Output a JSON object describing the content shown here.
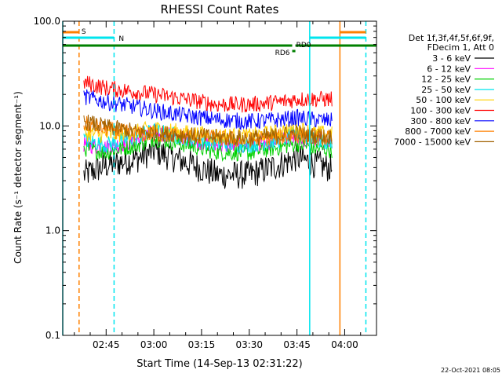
{
  "chart_data": {
    "type": "line",
    "title": "RHESSI Count Rates",
    "xlabel_prefix": "Start Time (",
    "xlabel_date": "14-Sep-13 02:31:22",
    "xlabel_suffix": ")",
    "ylabel": "Count Rate (s⁻¹ detector segment⁻¹)",
    "y_scale": "log",
    "ylim": [
      0.1,
      100.0
    ],
    "y_ticks": [
      {
        "value": 0.1,
        "label": "0.1"
      },
      {
        "value": 1.0,
        "label": "1.0"
      },
      {
        "value": 10.0,
        "label": "10.0"
      },
      {
        "value": 100.0,
        "label": "100.0"
      }
    ],
    "xlim": [
      "02:31:22",
      "04:10:00"
    ],
    "x_ticks": [
      {
        "time": "02:45",
        "label": "02:45"
      },
      {
        "time": "03:00",
        "label": "03:00"
      },
      {
        "time": "03:15",
        "label": "03:15"
      },
      {
        "time": "03:30",
        "label": "03:30"
      },
      {
        "time": "03:45",
        "label": "03:45"
      },
      {
        "time": "04:00",
        "label": "04:00"
      }
    ],
    "legend_header": [
      "Det 1f,3f,4f,5f,6f,9f,",
      "FDecim 1, Att 0"
    ],
    "legend_placement": "right",
    "series": [
      {
        "name": "3 - 6 keV",
        "color": "#000000",
        "x": [
          "02:38",
          "02:45",
          "02:55",
          "03:00",
          "03:10",
          "03:20",
          "03:30",
          "03:40",
          "03:45",
          "03:50",
          "03:56"
        ],
        "values": [
          3.4,
          4.2,
          4.9,
          5.8,
          4.5,
          3.4,
          3.4,
          4.3,
          5.0,
          4.4,
          3.9
        ]
      },
      {
        "name": "6 - 12 keV",
        "color": "#ff00ff",
        "x": [
          "02:38",
          "02:45",
          "02:55",
          "03:00",
          "03:10",
          "03:20",
          "03:30",
          "03:40",
          "03:45",
          "03:50",
          "03:56"
        ],
        "values": [
          6.7,
          6.2,
          7.4,
          8.8,
          7.5,
          6.5,
          6.4,
          7.4,
          7.6,
          7.2,
          6.8
        ]
      },
      {
        "name": "12 - 25 keV",
        "color": "#00d000",
        "x": [
          "02:38",
          "02:45",
          "02:55",
          "03:00",
          "03:10",
          "03:20",
          "03:30",
          "03:40",
          "03:45",
          "03:50",
          "03:56"
        ],
        "values": [
          6.1,
          5.6,
          6.6,
          7.6,
          6.6,
          5.6,
          5.5,
          6.3,
          6.8,
          6.1,
          5.9
        ]
      },
      {
        "name": "25 - 50 keV",
        "color": "#00e5ee",
        "x": [
          "02:38",
          "02:45",
          "02:55",
          "03:00",
          "03:10",
          "03:20",
          "03:30",
          "03:40",
          "03:45",
          "03:50",
          "03:56"
        ],
        "values": [
          7.4,
          6.6,
          7.9,
          9.0,
          7.7,
          6.8,
          6.6,
          7.3,
          8.5,
          7.4,
          6.9
        ]
      },
      {
        "name": "50 - 100 keV",
        "color": "#ffd000",
        "x": [
          "02:38",
          "02:45",
          "02:55",
          "03:00",
          "03:10",
          "03:20",
          "03:30",
          "03:40",
          "03:45",
          "03:50",
          "03:56"
        ],
        "values": [
          8.6,
          8.1,
          8.8,
          9.5,
          8.6,
          8.1,
          8.0,
          8.8,
          9.6,
          8.6,
          8.3
        ]
      },
      {
        "name": "100 - 300 keV",
        "color": "#ff0000",
        "x": [
          "02:38",
          "02:45",
          "02:55",
          "03:00",
          "03:10",
          "03:20",
          "03:30",
          "03:40",
          "03:45",
          "03:50",
          "03:56"
        ],
        "values": [
          26,
          23,
          21,
          20,
          18,
          16,
          16,
          17,
          18,
          18,
          18
        ]
      },
      {
        "name": "300 - 800 keV",
        "color": "#0000ff",
        "x": [
          "02:38",
          "02:45",
          "02:55",
          "03:00",
          "03:10",
          "03:20",
          "03:30",
          "03:40",
          "03:45",
          "03:50",
          "03:56"
        ],
        "values": [
          19,
          17,
          15,
          14,
          12.5,
          11.5,
          11.0,
          11.5,
          12.0,
          11.5,
          11.2
        ]
      },
      {
        "name": "800 - 7000 keV",
        "color": "#ff8000",
        "x": [
          "02:38",
          "02:45",
          "02:55",
          "03:00",
          "03:10",
          "03:20",
          "03:30",
          "03:40",
          "03:45",
          "03:50",
          "03:56"
        ],
        "values": [
          10.5,
          9.3,
          8.3,
          8.4,
          8.0,
          7.6,
          7.3,
          7.8,
          8.2,
          7.8,
          7.5
        ]
      },
      {
        "name": "7000 - 15000 keV",
        "color": "#a06000",
        "x": [
          "02:38",
          "02:45",
          "02:55",
          "03:00",
          "03:10",
          "03:20",
          "03:30",
          "03:40",
          "03:45",
          "03:50",
          "03:56"
        ],
        "values": [
          11.0,
          9.8,
          8.8,
          8.6,
          8.2,
          7.8,
          7.6,
          8.2,
          8.6,
          8.1,
          7.9
        ]
      }
    ],
    "vertical_lines": [
      {
        "time": "02:31:22",
        "color": "#00e5ee",
        "style": "solid"
      },
      {
        "time": "02:36:30",
        "color": "#ff8000",
        "style": "dashed"
      },
      {
        "time": "02:47:30",
        "color": "#00e5ee",
        "style": "dashed"
      },
      {
        "time": "03:49:00",
        "color": "#00e5ee",
        "style": "solid"
      },
      {
        "time": "03:58:30",
        "color": "#ff8000",
        "style": "solid"
      },
      {
        "time": "04:06:40",
        "color": "#00e5ee",
        "style": "dashed"
      }
    ],
    "flag_bars": [
      {
        "label": "S",
        "color": "#ff8000",
        "segments": [
          [
            "02:31:22",
            "02:36:30"
          ],
          [
            "03:58:30",
            "04:06:40"
          ]
        ],
        "level": 1
      },
      {
        "label": "N",
        "color": "#00e5ee",
        "segments": [
          [
            "02:31:22",
            "02:47:30"
          ],
          [
            "03:49:00",
            "04:06:40"
          ]
        ],
        "level": 2
      },
      {
        "label": "RD0",
        "color": "#008000",
        "segments": [
          [
            "02:31:22",
            "03:43:30"
          ],
          [
            "03:44:30",
            "04:10:00"
          ]
        ],
        "level": 3
      },
      {
        "label": "RD6",
        "color": "#008000",
        "segments": [
          [
            "03:43:30",
            "03:44:30"
          ]
        ],
        "level": 4
      }
    ],
    "timestamp": "22-Oct-2021 08:05"
  }
}
